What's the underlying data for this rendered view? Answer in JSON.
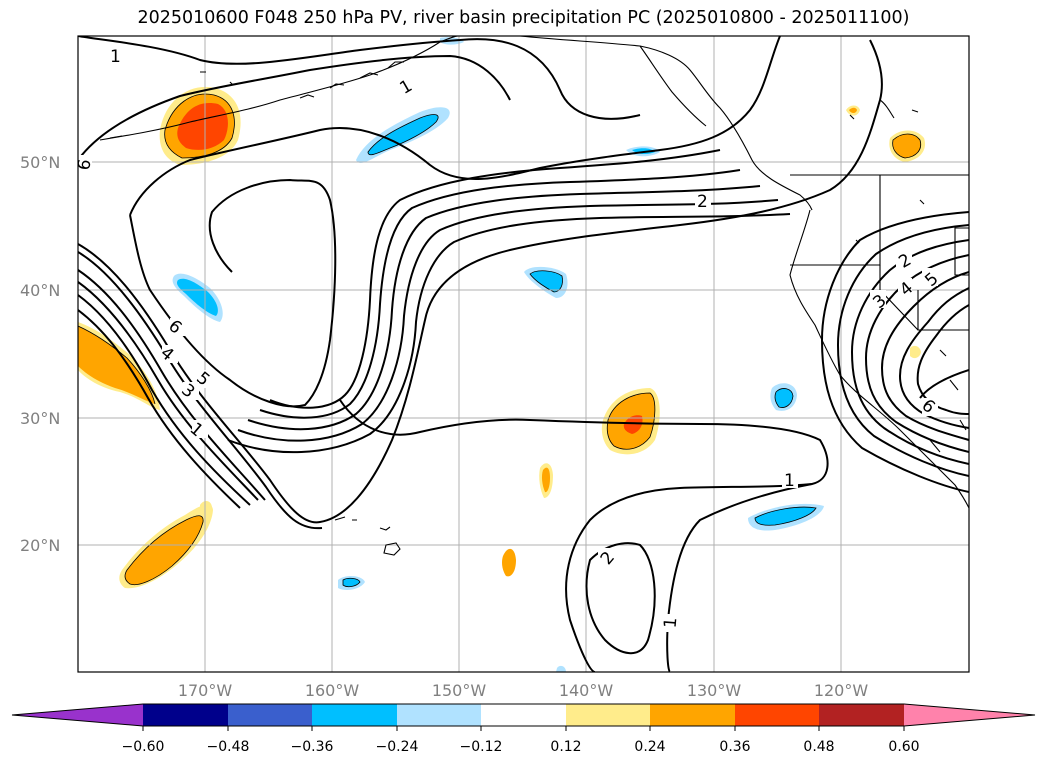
{
  "title": "2025010600 F048 250 hPa PV, river basin precipitation PC (2025010800 - 2025011100)",
  "lat_labels": [
    "50°N",
    "40°N",
    "30°N",
    "20°N"
  ],
  "lon_labels": [
    "170°W",
    "160°W",
    "150°W",
    "140°W",
    "130°W",
    "120°W"
  ],
  "colorbar": {
    "ticks": [
      "−0.60",
      "−0.48",
      "−0.36",
      "−0.24",
      "−0.12",
      "0.12",
      "0.24",
      "0.36",
      "0.48",
      "0.60"
    ],
    "colors": [
      "#9932cc",
      "#00008b",
      "#3a5fcd",
      "#00bfff",
      "#b0e2ff",
      "#ffffff",
      "#ffec8b",
      "#ffa500",
      "#ff4500",
      "#b22222",
      "#ff82ab"
    ]
  },
  "contour_labels": [
    "1",
    "2",
    "4",
    "5",
    "6",
    "1",
    "4",
    "5",
    "3",
    "1",
    "6",
    "2",
    "1",
    "2",
    "4",
    "3",
    "5",
    "6",
    "2",
    "1"
  ]
}
